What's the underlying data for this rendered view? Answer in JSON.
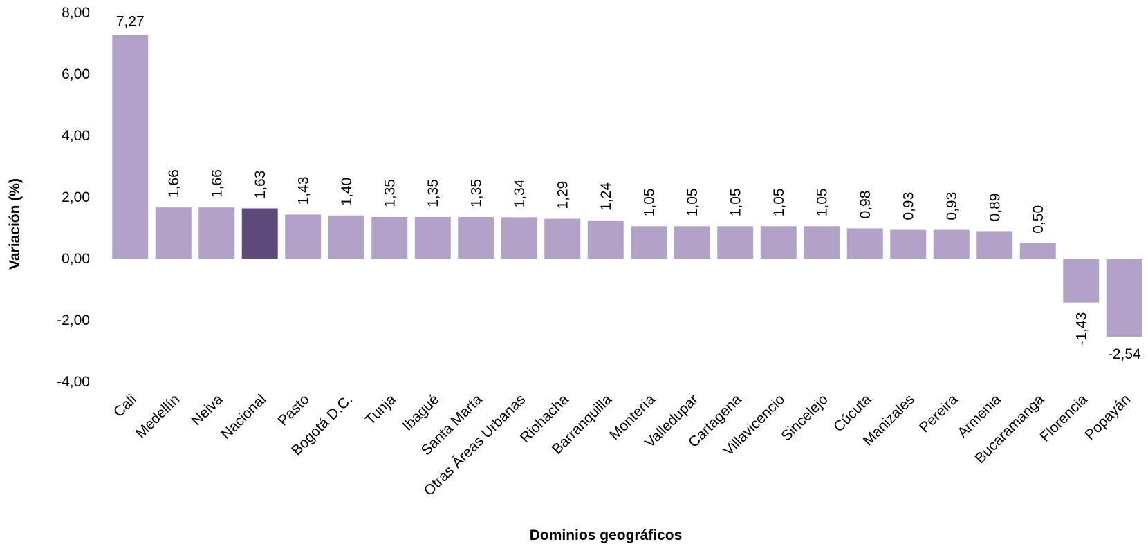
{
  "chart_data": {
    "type": "bar",
    "title": "",
    "xlabel": "Dominios geográficos",
    "ylabel": "Variación (%)",
    "ylim": [
      -4,
      8
    ],
    "yticks": [
      8,
      6,
      4,
      2,
      0,
      -2,
      -4
    ],
    "ytick_labels": [
      "8,00",
      "6,00",
      "4,00",
      "2,00",
      "0,00",
      "-2,00",
      "-4,00"
    ],
    "grid": false,
    "legend": "none",
    "categories": [
      "Cali",
      "Medellín",
      "Neiva",
      "Nacional",
      "Pasto",
      "Bogotá D.C.",
      "Tunja",
      "Ibagué",
      "Santa Marta",
      "Otras Áreas Urbanas",
      "Riohacha",
      "Barranquilla",
      "Montería",
      "Valledupar",
      "Cartagena",
      "Villavicencio",
      "Sincelejo",
      "Cúcuta",
      "Manizales",
      "Pereira",
      "Armenia",
      "Bucaramanga",
      "Florencia",
      "Popayán"
    ],
    "values": [
      7.27,
      1.66,
      1.66,
      1.63,
      1.43,
      1.4,
      1.35,
      1.35,
      1.35,
      1.34,
      1.29,
      1.24,
      1.05,
      1.05,
      1.05,
      1.05,
      1.05,
      0.98,
      0.93,
      0.93,
      0.89,
      0.5,
      -1.43,
      -2.54
    ],
    "value_labels": [
      "7,27",
      "1,66",
      "1,66",
      "1,63",
      "1,43",
      "1,40",
      "1,35",
      "1,35",
      "1,35",
      "1,34",
      "1,29",
      "1,24",
      "1,05",
      "1,05",
      "1,05",
      "1,05",
      "1,05",
      "0,98",
      "0,93",
      "0,93",
      "0,89",
      "0,50",
      "-1,43",
      "-2,54"
    ],
    "highlight_category": "Nacional",
    "colors": {
      "bar": "#b3a2c8",
      "highlight": "#5f4a7c",
      "text": "#000000"
    }
  }
}
